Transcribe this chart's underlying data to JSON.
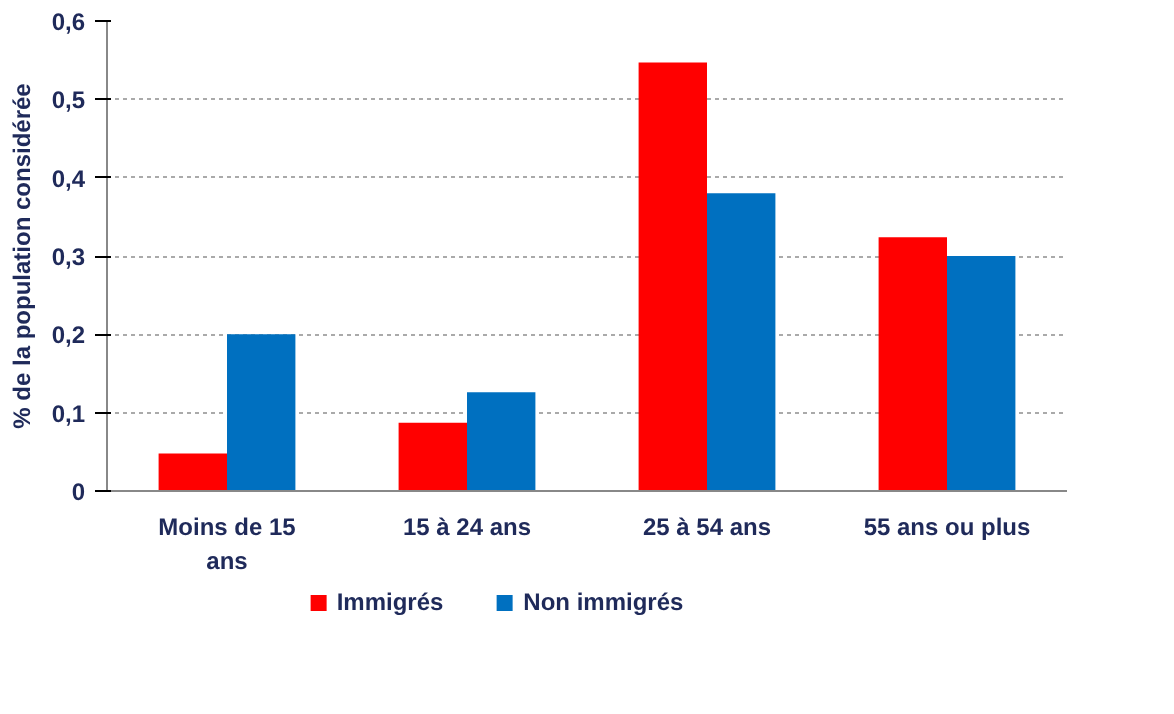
{
  "chart_data": {
    "type": "bar",
    "ylabel": "% de la population considérée",
    "categories": [
      "Moins de 15 ans",
      "15 à 24 ans",
      "25 à 54 ans",
      "55 ans ou plus"
    ],
    "series": [
      {
        "name": "Immigrés",
        "color": "#ff0000",
        "values": [
          0.048,
          0.087,
          0.547,
          0.324
        ]
      },
      {
        "name": "Non immigrés",
        "color": "#0070c0",
        "values": [
          0.2,
          0.126,
          0.38,
          0.3
        ]
      }
    ],
    "ylim": [
      0,
      0.6
    ],
    "yticks": [
      0,
      {
        "value": 0.1,
        "label": "0,1"
      },
      {
        "value": 0.2,
        "label": "0,2"
      },
      {
        "value": 0.3,
        "label": "0,3"
      },
      {
        "value": 0.4,
        "label": "0,4"
      },
      {
        "value": 0.5,
        "label": "0,5"
      },
      {
        "value": 0.6,
        "label": "0,6"
      }
    ],
    "grid": "y",
    "legend": "bottom"
  }
}
